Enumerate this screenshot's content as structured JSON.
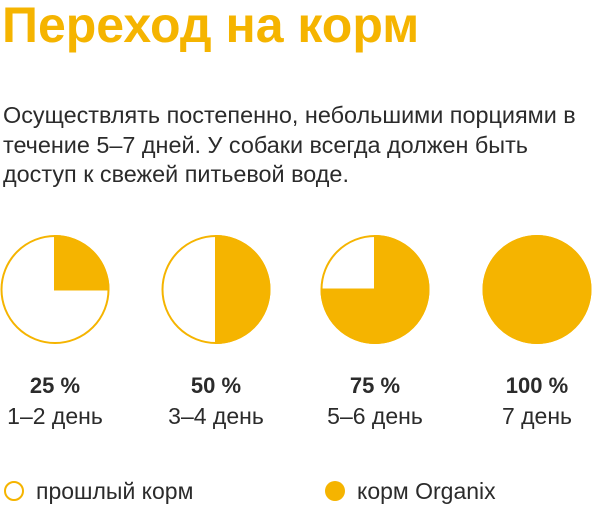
{
  "title": "Переход на корм",
  "intro": "Осуществлять постепенно, небольшими порциями в течение 5–7 дней. У собаки всегда должен быть доступ к свежей питьевой воде.",
  "colors": {
    "accent": "#f5b400",
    "text": "#2b2b2b",
    "empty": "#ffffff"
  },
  "chart_data": {
    "type": "pie",
    "title": "",
    "series": [
      {
        "name": "прошлый корм",
        "color": "#ffffff"
      },
      {
        "name": "корм Organix",
        "color": "#f5b400"
      }
    ],
    "categories": [
      "1–2 день",
      "3–4 день",
      "5–6 день",
      "7 день"
    ],
    "values": [
      25,
      50,
      75,
      100
    ],
    "value_labels": [
      "25 %",
      "50 %",
      "75 %",
      "100 %"
    ],
    "unit": "%",
    "legend_position": "bottom"
  },
  "legend": {
    "old": "прошлый корм",
    "new": "корм Organix"
  }
}
